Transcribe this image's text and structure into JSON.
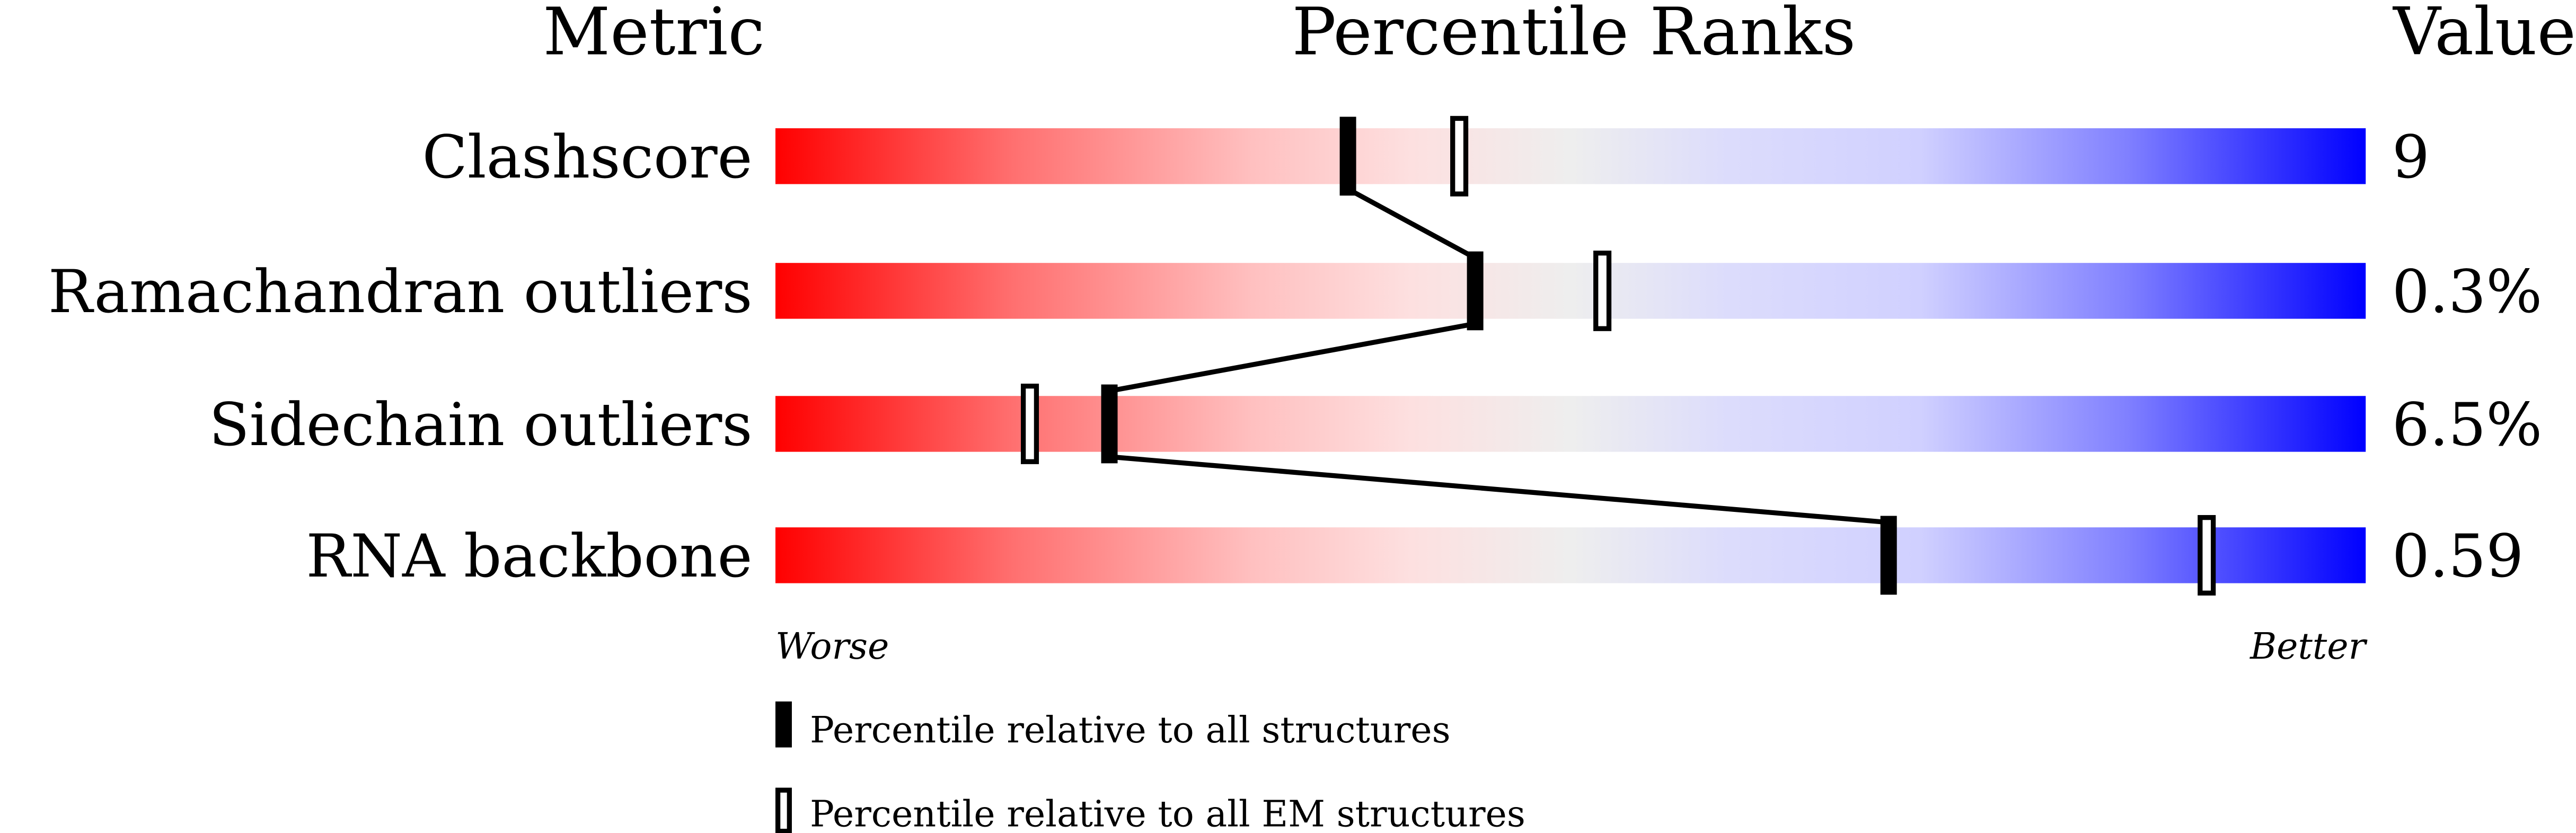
{
  "chart_data": {
    "type": "percentile-slider",
    "headers": {
      "metric": "Metric",
      "ranks": "Percentile Ranks",
      "value": "Value"
    },
    "xlim": [
      0,
      100
    ],
    "axis_labels": {
      "left": "Worse",
      "right": "Better"
    },
    "rows": [
      {
        "metric": "Clashscore",
        "value": "9",
        "percentile_all": 36,
        "percentile_em": 43
      },
      {
        "metric": "Ramachandran outliers",
        "value": "0.3%",
        "percentile_all": 44,
        "percentile_em": 52
      },
      {
        "metric": "Sidechain outliers",
        "value": "6.5%",
        "percentile_all": 21,
        "percentile_em": 16
      },
      {
        "metric": "RNA backbone",
        "value": "0.59",
        "percentile_all": 70,
        "percentile_em": 90
      }
    ],
    "legend": [
      {
        "marker": "filled",
        "label": "Percentile relative to all structures"
      },
      {
        "marker": "open",
        "label": "Percentile relative to all EM structures"
      }
    ],
    "gradient_colors": [
      "#ff0000",
      "#ff7070",
      "#ffc0c0",
      "#fde0e0",
      "#eeeeee",
      "#dcdcfc",
      "#d0d0ff",
      "#8080ff",
      "#0000ff"
    ]
  }
}
